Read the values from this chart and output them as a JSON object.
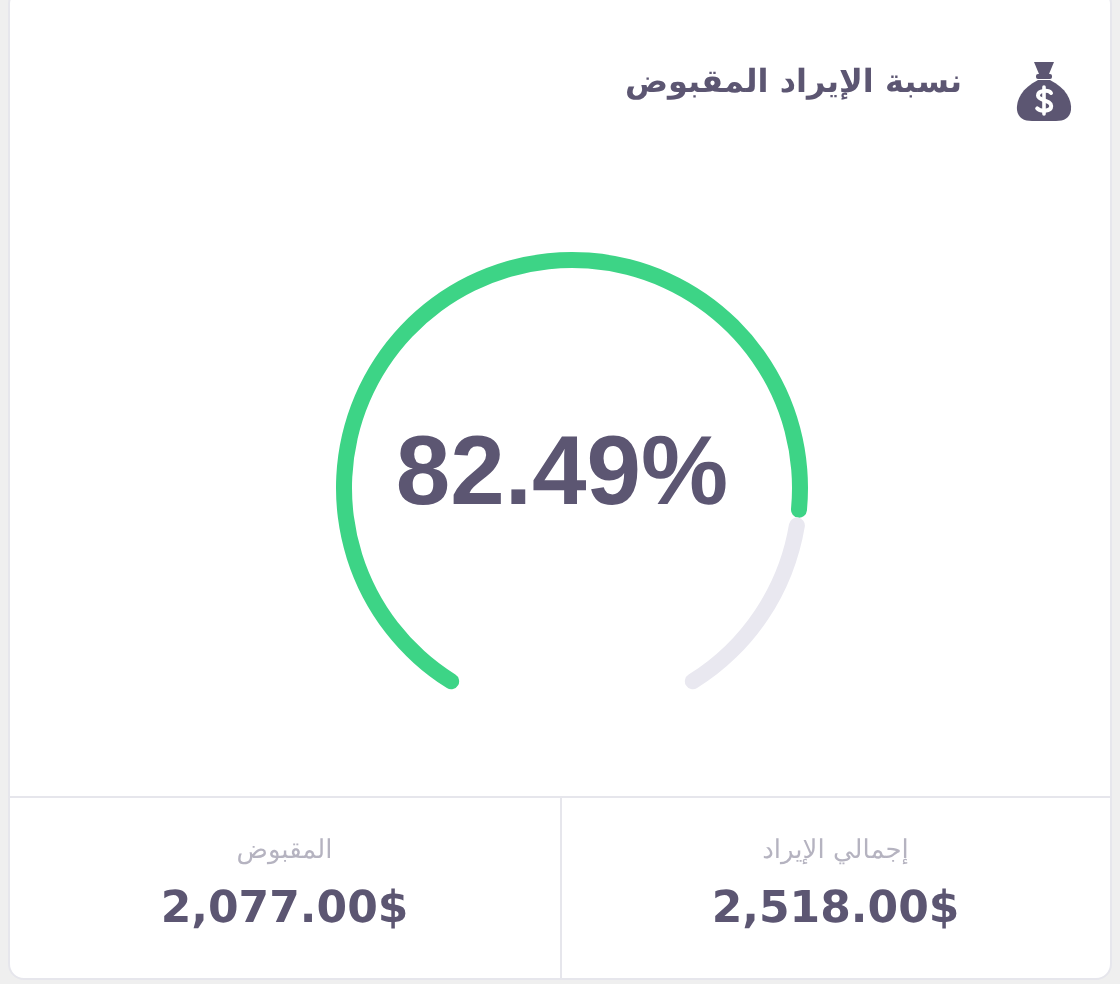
{
  "chart_data": {
    "type": "donut",
    "title": "نسبة الإيراد المقبوض",
    "categories": [
      null,
      null
    ],
    "values": [
      82.49,
      17.51
    ],
    "colors": [
      "#3dd486",
      "#e9e8f0"
    ],
    "value_labels": [
      "82.49%",
      null
    ],
    "annotations": [
      "إجمالي الإيراد",
      "2,518.00$",
      "المقبوض",
      "2,077.00$"
    ]
  }
}
